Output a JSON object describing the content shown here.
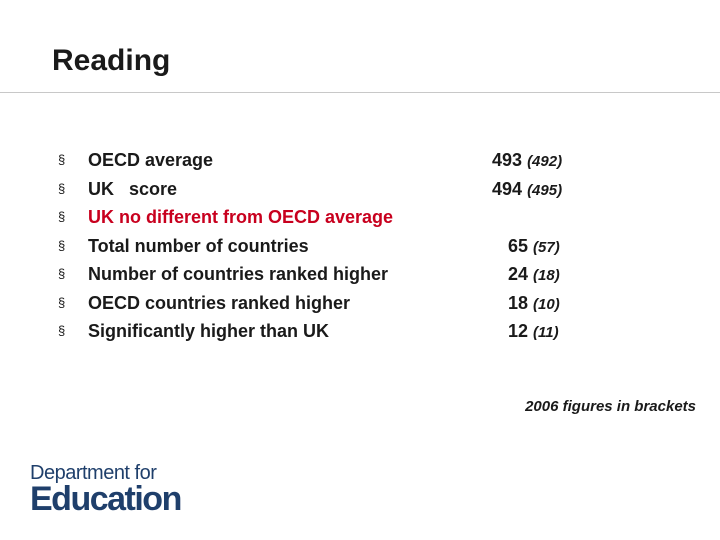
{
  "slide": {
    "title": "Reading",
    "bullet_glyph": "§",
    "items": [
      {
        "label": "OECD average",
        "value": "493",
        "prev": "(492)"
      },
      {
        "label": "UK   score",
        "value": "494",
        "prev": "(495)"
      },
      {
        "label": "UK no different from OECD average",
        "value": "",
        "prev": ""
      },
      {
        "label": "Total number of countries",
        "value": "65",
        "prev": "(57)"
      },
      {
        "label": "Number of countries ranked higher",
        "value": "24",
        "prev": "(18)"
      },
      {
        "label": "OECD countries ranked higher",
        "value": "18",
        "prev": "(10)"
      },
      {
        "label": "Significantly higher than UK",
        "value": "12",
        "prev": "(11)"
      }
    ],
    "note": "2006 figures in brackets",
    "highlight_color": "#c8001e"
  },
  "logo": {
    "line1": "Department for",
    "line2": "Education",
    "color": "#1f3f6b"
  }
}
